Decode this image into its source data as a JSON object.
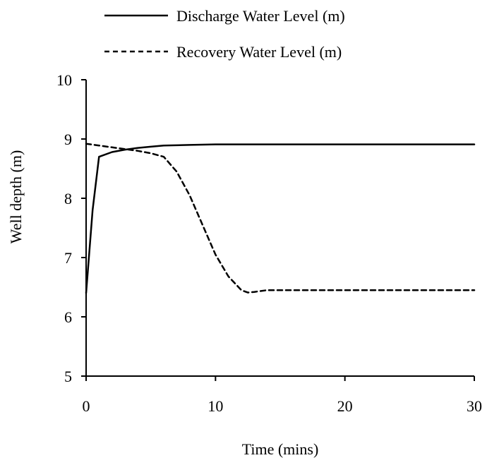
{
  "chart_data": {
    "type": "line",
    "title": "",
    "xlabel": "Time (mins)",
    "ylabel": "Well depth (m)",
    "xlim": [
      0,
      30
    ],
    "ylim": [
      5,
      10
    ],
    "x_ticks": [
      0,
      10,
      20,
      30
    ],
    "y_ticks": [
      5,
      6,
      7,
      8,
      9,
      10
    ],
    "grid": false,
    "legend_position": "top",
    "series": [
      {
        "name": "Discharge Water Level (m)",
        "style": "solid",
        "color": "#000000",
        "x": [
          0,
          0.5,
          1,
          2,
          3,
          4,
          5,
          6,
          8,
          10,
          15,
          20,
          25,
          30
        ],
        "y": [
          6.4,
          7.8,
          8.7,
          8.78,
          8.82,
          8.85,
          8.87,
          8.89,
          8.9,
          8.91,
          8.91,
          8.91,
          8.91,
          8.91
        ]
      },
      {
        "name": "Recovery Water Level (m)",
        "style": "dashed",
        "color": "#000000",
        "x": [
          0,
          1,
          2,
          3,
          4,
          5,
          6,
          7,
          8,
          9,
          10,
          11,
          12,
          12.5,
          13,
          14,
          16,
          20,
          25,
          30
        ],
        "y": [
          8.92,
          8.89,
          8.86,
          8.83,
          8.8,
          8.76,
          8.7,
          8.45,
          8.05,
          7.55,
          7.05,
          6.68,
          6.45,
          6.41,
          6.42,
          6.45,
          6.45,
          6.45,
          6.45,
          6.45
        ]
      }
    ]
  }
}
